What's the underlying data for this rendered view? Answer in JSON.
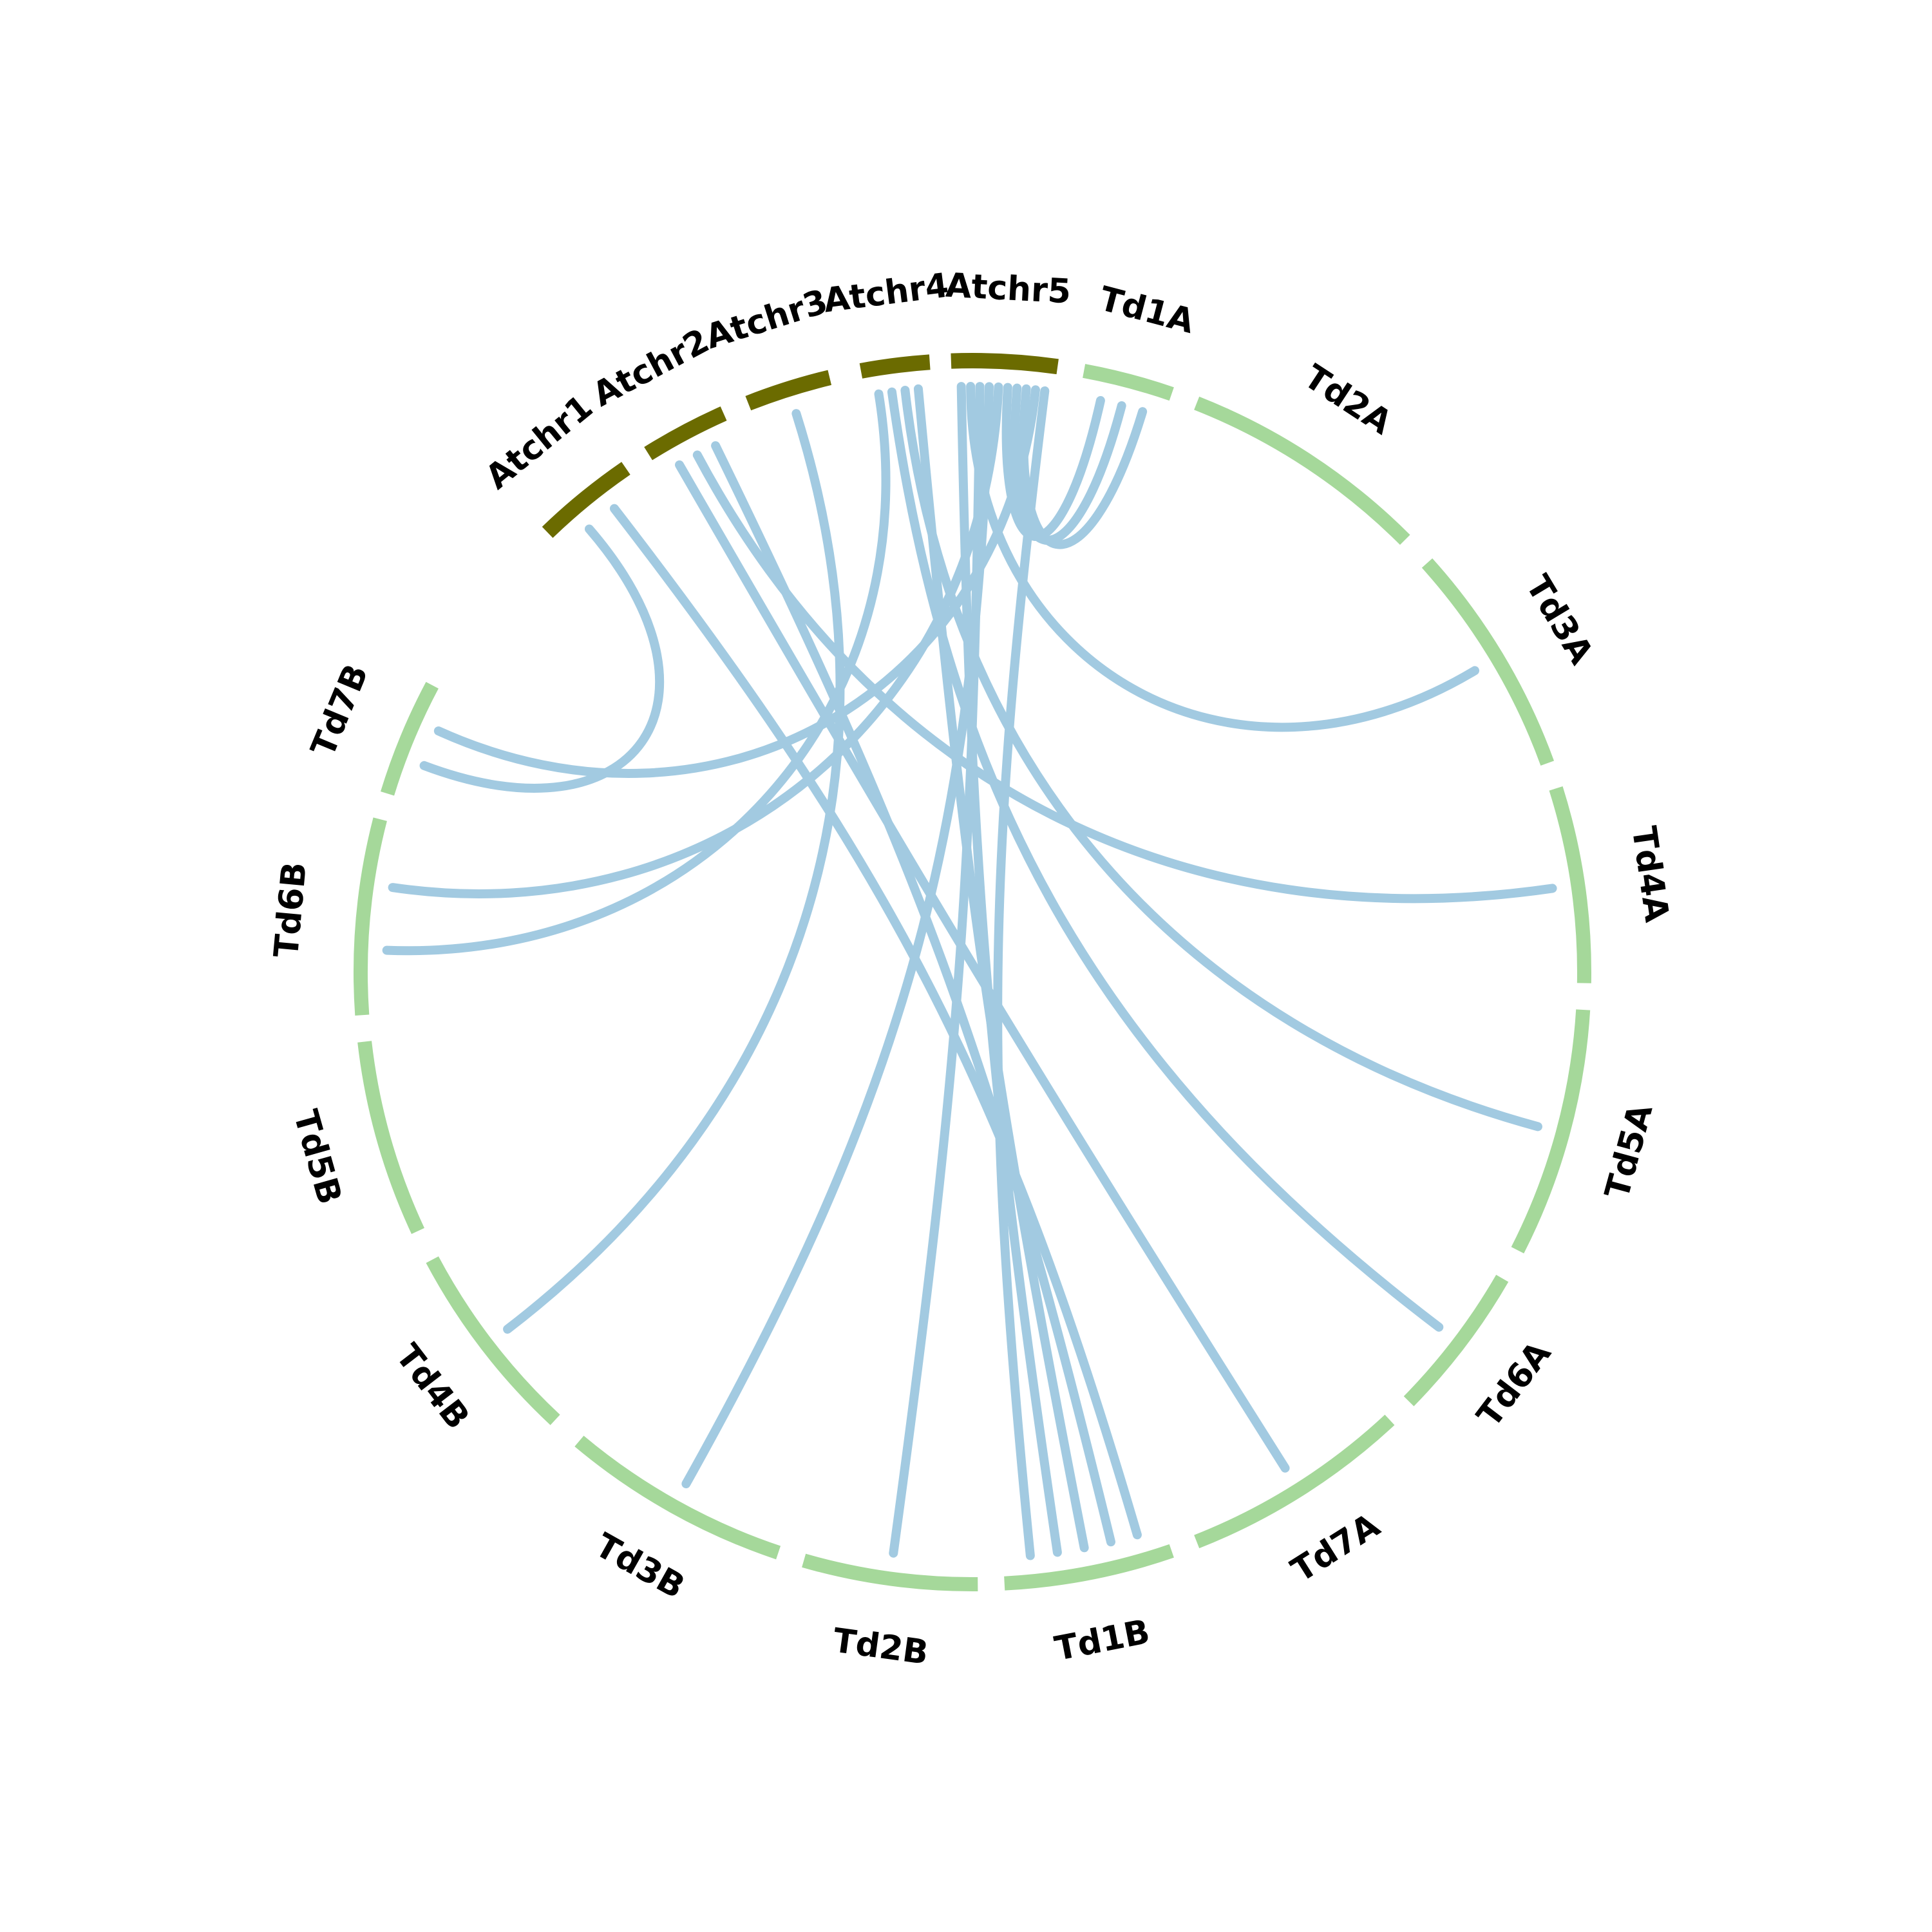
{
  "colors": {
    "arabidopsis": "#6b6b00",
    "wheat": "#a5d89a",
    "link": "#a2cae1",
    "label": "#000000"
  },
  "segments": [
    {
      "name": "Atchr1",
      "group": "arabidopsis"
    },
    {
      "name": "Atchr2",
      "group": "arabidopsis"
    },
    {
      "name": "Atchr3",
      "group": "arabidopsis"
    },
    {
      "name": "Atchr4",
      "group": "arabidopsis"
    },
    {
      "name": "Atchr5",
      "group": "arabidopsis"
    },
    {
      "name": "Td1A",
      "group": "wheat"
    },
    {
      "name": "Td2A",
      "group": "wheat"
    },
    {
      "name": "Td3A",
      "group": "wheat"
    },
    {
      "name": "Td4A",
      "group": "wheat"
    },
    {
      "name": "Td5A",
      "group": "wheat"
    },
    {
      "name": "Td6A",
      "group": "wheat"
    },
    {
      "name": "Td7A",
      "group": "wheat"
    },
    {
      "name": "Td1B",
      "group": "wheat"
    },
    {
      "name": "Td2B",
      "group": "wheat"
    },
    {
      "name": "Td3B",
      "group": "wheat"
    },
    {
      "name": "Td4B",
      "group": "wheat"
    },
    {
      "name": "Td5B",
      "group": "wheat"
    },
    {
      "name": "Td6B",
      "group": "wheat"
    },
    {
      "name": "Td7B",
      "group": "wheat"
    }
  ],
  "links": [
    {
      "from": "Atchr1",
      "to": "Td7B"
    },
    {
      "from": "Atchr1",
      "to": "Td1B"
    },
    {
      "from": "Atchr2",
      "to": "Td7A"
    },
    {
      "from": "Atchr2",
      "to": "Td4A"
    },
    {
      "from": "Atchr2",
      "to": "Td1B"
    },
    {
      "from": "Atchr3",
      "to": "Td4B"
    },
    {
      "from": "Atchr4",
      "to": "Td6B"
    },
    {
      "from": "Atchr4",
      "to": "Td6A"
    },
    {
      "from": "Atchr4",
      "to": "Td5A"
    },
    {
      "from": "Atchr4",
      "to": "Td1B"
    },
    {
      "from": "Atchr5",
      "to": "Td1B"
    },
    {
      "from": "Atchr5",
      "to": "Td3A"
    },
    {
      "from": "Atchr5",
      "to": "Td2B"
    },
    {
      "from": "Atchr5",
      "to": "Td3B"
    },
    {
      "from": "Atchr5",
      "to": "Td6B"
    },
    {
      "from": "Atchr5",
      "to": "Td1A"
    },
    {
      "from": "Atchr5",
      "to": "Td1A"
    },
    {
      "from": "Atchr5",
      "to": "Td1A"
    },
    {
      "from": "Atchr5",
      "to": "Td7B"
    },
    {
      "from": "Atchr5",
      "to": "Td1B"
    }
  ]
}
